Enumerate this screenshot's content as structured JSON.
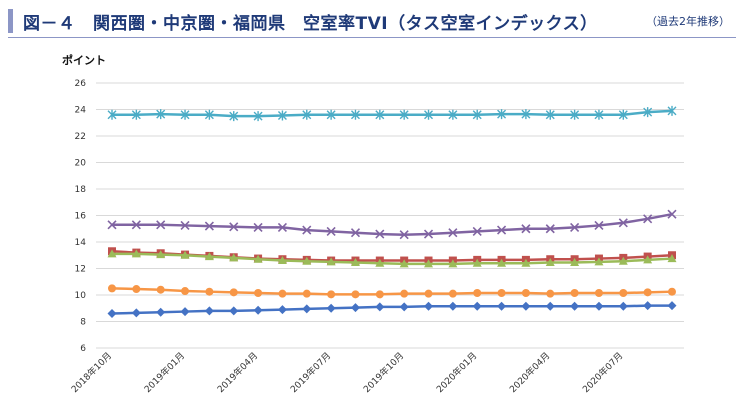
{
  "header": {
    "title": "図－４　関西圏・中京圏・福岡県　空室率TVI（タス空室インデックス）",
    "subtitle": "（過去2年推移）"
  },
  "chart_data": {
    "type": "line",
    "title": "関西圏・中京圏・福岡県　空室率TVI（タス空室インデックス）",
    "xlabel": "",
    "ylabel": "ポイント",
    "ylim": [
      6,
      26
    ],
    "yticks": [
      6,
      8,
      10,
      12,
      14,
      16,
      18,
      20,
      22,
      24,
      26
    ],
    "grid": true,
    "legend": "none",
    "x": [
      "2018年10月",
      "2018年11月",
      "2018年12月",
      "2019年01月",
      "2019年02月",
      "2019年03月",
      "2019年04月",
      "2019年05月",
      "2019年06月",
      "2019年07月",
      "2019年08月",
      "2019年09月",
      "2019年10月",
      "2019年11月",
      "2019年12月",
      "2020年01月",
      "2020年02月",
      "2020年03月",
      "2020年04月",
      "2020年05月",
      "2020年06月",
      "2020年07月",
      "2020年08月",
      "2020年09月"
    ],
    "xtick_labels": [
      "2018年10月",
      "2019年01月",
      "2019年04月",
      "2019年07月",
      "2019年10月",
      "2020年01月",
      "2020年04月",
      "2020年07月"
    ],
    "series": [
      {
        "color": "#4bacc6",
        "marker": "star",
        "values": [
          23.6,
          23.6,
          23.65,
          23.6,
          23.6,
          23.5,
          23.5,
          23.55,
          23.6,
          23.6,
          23.6,
          23.6,
          23.6,
          23.6,
          23.6,
          23.6,
          23.65,
          23.65,
          23.6,
          23.6,
          23.6,
          23.6,
          23.8,
          23.9
        ]
      },
      {
        "color": "#8064a2",
        "marker": "x",
        "values": [
          15.3,
          15.3,
          15.3,
          15.25,
          15.2,
          15.15,
          15.1,
          15.1,
          14.9,
          14.8,
          14.7,
          14.6,
          14.55,
          14.6,
          14.7,
          14.8,
          14.9,
          15.0,
          15.0,
          15.1,
          15.25,
          15.45,
          15.75,
          16.1
        ]
      },
      {
        "color": "#c0504d",
        "marker": "square",
        "values": [
          13.3,
          13.2,
          13.15,
          13.05,
          12.95,
          12.85,
          12.75,
          12.7,
          12.65,
          12.6,
          12.6,
          12.6,
          12.6,
          12.6,
          12.6,
          12.65,
          12.65,
          12.65,
          12.7,
          12.7,
          12.75,
          12.8,
          12.9,
          13.0
        ]
      },
      {
        "color": "#9bbb59",
        "marker": "triangle",
        "values": [
          13.1,
          13.1,
          13.05,
          13.0,
          12.9,
          12.8,
          12.7,
          12.6,
          12.55,
          12.5,
          12.45,
          12.4,
          12.35,
          12.35,
          12.35,
          12.4,
          12.4,
          12.4,
          12.45,
          12.45,
          12.5,
          12.55,
          12.65,
          12.75
        ]
      },
      {
        "color": "#f79646",
        "marker": "circle",
        "values": [
          10.5,
          10.45,
          10.4,
          10.3,
          10.25,
          10.2,
          10.15,
          10.1,
          10.1,
          10.05,
          10.05,
          10.05,
          10.1,
          10.1,
          10.1,
          10.15,
          10.15,
          10.15,
          10.1,
          10.15,
          10.15,
          10.15,
          10.2,
          10.25
        ]
      },
      {
        "color": "#4472c4",
        "marker": "diamond",
        "values": [
          8.6,
          8.65,
          8.7,
          8.75,
          8.8,
          8.8,
          8.85,
          8.9,
          8.95,
          9.0,
          9.05,
          9.1,
          9.1,
          9.15,
          9.15,
          9.15,
          9.15,
          9.15,
          9.15,
          9.15,
          9.15,
          9.15,
          9.2,
          9.2
        ]
      }
    ]
  }
}
